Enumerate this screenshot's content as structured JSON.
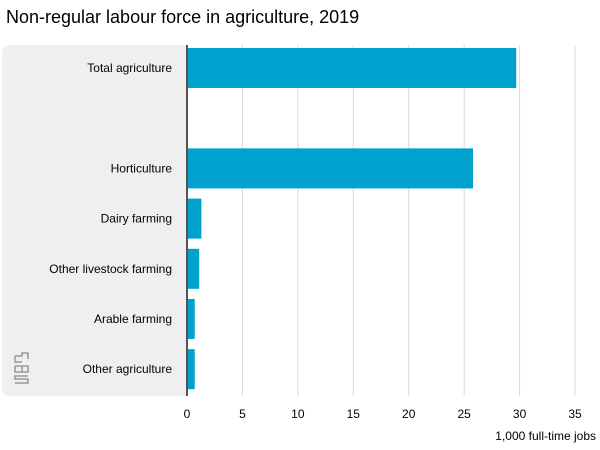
{
  "chart_data": {
    "type": "bar",
    "orientation": "horizontal",
    "title": "Non-regular labour force in agriculture, 2019",
    "categories": [
      "Total agriculture",
      "",
      "Horticulture",
      "Dairy farming",
      "Other livestock farming",
      "Arable farming",
      "Other agriculture"
    ],
    "values": [
      29.7,
      null,
      25.8,
      1.3,
      1.1,
      0.7,
      0.7
    ],
    "xlabel": "1,000 full-time jobs",
    "xlim": [
      0,
      35
    ],
    "xticks": [
      0,
      5,
      10,
      15,
      20,
      25,
      30,
      35
    ],
    "grid": "vertical",
    "bar_color": "#00a1cd",
    "label_panel_color": "#efefef",
    "logo": "cbs"
  }
}
